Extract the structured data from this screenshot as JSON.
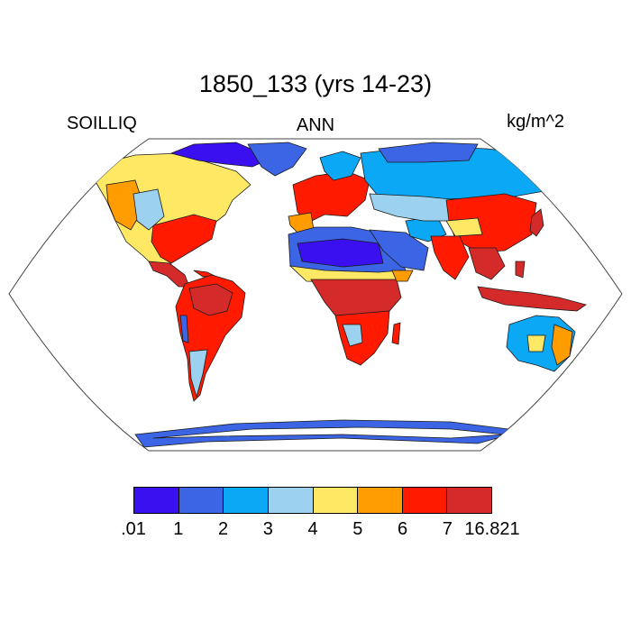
{
  "title": "1850_133 (yrs 14-23)",
  "label_left": "SOILLIQ",
  "label_center": "ANN",
  "label_right": "kg/m^2",
  "colorbar": {
    "colors": [
      "#3a10f0",
      "#3c65e6",
      "#0aa8f5",
      "#9cd1ef",
      "#ffe864",
      "#ff9c00",
      "#ff1a00",
      "#d42a2a"
    ],
    "ticks": [
      ".01",
      "1",
      "2",
      "3",
      "4",
      "5",
      "6",
      "7",
      "16.821"
    ]
  },
  "map": {
    "projection": "Robinson",
    "ocean_color": "#ffffff",
    "coastline_color": "#000000"
  }
}
